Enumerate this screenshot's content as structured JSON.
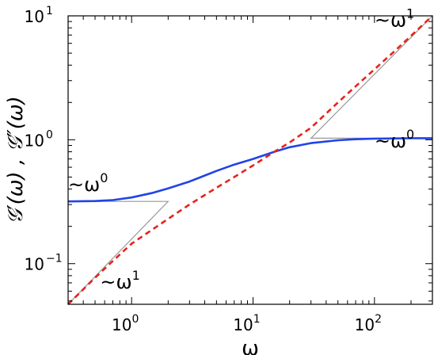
{
  "chart_data": {
    "type": "line",
    "xscale": "log",
    "yscale": "log",
    "xlabel": "ω",
    "ylabel": "𝒢′(ω) , 𝒢″(ω)",
    "xlim": [
      0.3,
      300
    ],
    "ylim": [
      0.047,
      10
    ],
    "grid": false,
    "legend": "none",
    "x_ticks": [
      {
        "value": 1,
        "base": "10",
        "exp": "0"
      },
      {
        "value": 10,
        "base": "10",
        "exp": "1"
      },
      {
        "value": 100,
        "base": "10",
        "exp": "2"
      }
    ],
    "y_ticks": [
      {
        "value": 0.1,
        "base": "10",
        "exp": "−1"
      },
      {
        "value": 1,
        "base": "10",
        "exp": "0"
      },
      {
        "value": 10,
        "base": "10",
        "exp": "1"
      }
    ],
    "series": [
      {
        "color": "#2143e8",
        "style": "solid",
        "x": [
          0.3,
          0.5,
          0.7,
          1,
          1.5,
          2,
          3,
          5,
          7,
          10,
          15,
          20,
          30,
          50,
          70,
          100,
          150,
          200,
          300
        ],
        "y": [
          0.318,
          0.32,
          0.326,
          0.342,
          0.373,
          0.405,
          0.46,
          0.56,
          0.63,
          0.7,
          0.8,
          0.87,
          0.94,
          0.99,
          1.01,
          1.02,
          1.025,
          1.03,
          1.03
        ]
      },
      {
        "color": "#e8231a",
        "style": "dashed",
        "x": [
          0.3,
          0.5,
          0.7,
          1,
          1.5,
          2,
          3,
          5,
          7,
          10,
          15,
          20,
          30,
          50,
          70,
          100,
          150,
          200,
          300
        ],
        "y": [
          0.047,
          0.077,
          0.105,
          0.145,
          0.19,
          0.23,
          0.3,
          0.41,
          0.5,
          0.62,
          0.8,
          0.95,
          1.25,
          2.0,
          2.7,
          3.7,
          5.3,
          6.9,
          10.0
        ]
      }
    ],
    "guide_lines": [
      {
        "points": [
          [
            0.3,
            0.318
          ],
          [
            2.0,
            0.318
          ],
          [
            0.3,
            0.047
          ]
        ]
      },
      {
        "points": [
          [
            30,
            1.03
          ],
          [
            300,
            1.03
          ],
          [
            30,
            1.03
          ],
          [
            300,
            10.0
          ]
        ]
      }
    ],
    "annotations": [
      {
        "text": "~ω",
        "sup": "0",
        "at": [
          0.3,
          0.385
        ]
      },
      {
        "text": "~ω",
        "sup": "1",
        "at": [
          0.55,
          0.063
        ]
      },
      {
        "text": "~ω",
        "sup": "1",
        "at": [
          100,
          8.2
        ]
      },
      {
        "text": "~ω",
        "sup": "0",
        "at": [
          100,
          0.87
        ]
      }
    ]
  }
}
